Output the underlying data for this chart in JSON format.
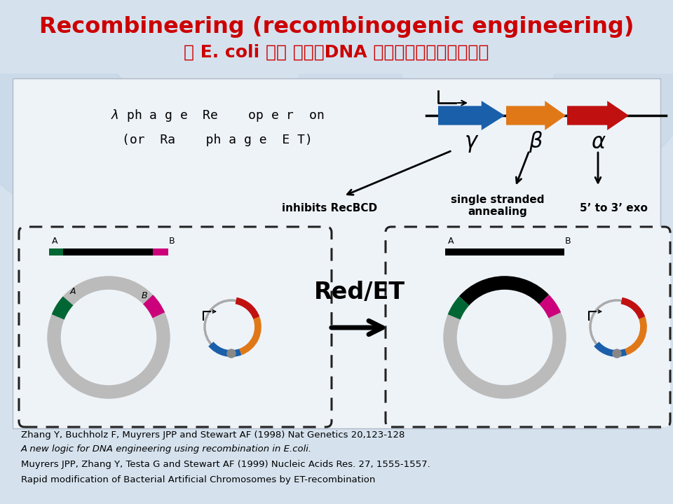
{
  "title_line1": "Recombineering (recombinogenic engineering)",
  "title_line2": "在 E. coli 中对 大片殽DNA 进行修饰的基因工程技术",
  "title_color": "#cc0000",
  "bg_color": "#d5e2ee",
  "panel_bg": "#eef3f8",
  "arrow_blue": "#1a5faa",
  "arrow_orange": "#e07818",
  "arrow_red": "#c01010",
  "inhibits_text": "inhibits RecBCD",
  "single_strand_text": "single stranded\nannealing",
  "exo_text": "5’ to 3’ exo",
  "gamma_text": "γ",
  "beta_text": "β",
  "alpha_text": "α",
  "red_et_text": "Red/ET",
  "ref_lines": [
    "Zhang Y, Buchholz F, Muyrers JPP and Stewart AF (1998) Nat Genetics 20,123-128",
    "A new logic for DNA engineering using recombination in E.coli.",
    "Muyrers JPP, Zhang Y, Testa G and Stewart AF (1999) Nucleic Acids Res. 27, 1555-1557.",
    "Rapid modification of Bacterial Artificial Chromosomes by ET-recombination"
  ]
}
